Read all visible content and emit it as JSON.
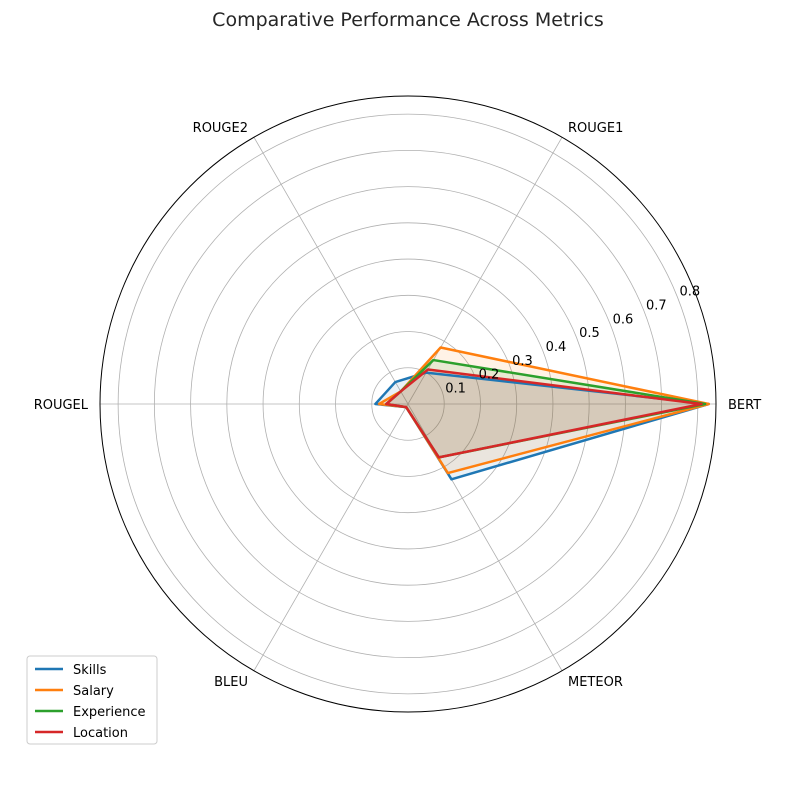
{
  "chart_data": {
    "type": "radar",
    "title": "Comparative Performance Across Metrics",
    "axes": [
      "BERT",
      "ROUGE1",
      "ROUGE2",
      "ROUGEL",
      "BLEU",
      "METEOR"
    ],
    "rlim": [
      0,
      0.85
    ],
    "r_ticks": [
      "0.1",
      "0.2",
      "0.3",
      "0.4",
      "0.5",
      "0.6",
      "0.7",
      "0.8"
    ],
    "grid": true,
    "legend_position": "lower-left",
    "series": [
      {
        "name": "Skills",
        "color": "#1f77b4",
        "values": [
          0.83,
          0.1,
          0.07,
          0.09,
          0.01,
          0.24
        ]
      },
      {
        "name": "Salary",
        "color": "#ff7f0e",
        "values": [
          0.83,
          0.18,
          0.04,
          0.08,
          0.01,
          0.22
        ]
      },
      {
        "name": "Experience",
        "color": "#2ca02c",
        "values": [
          0.82,
          0.14,
          0.04,
          0.06,
          0.01,
          0.17
        ]
      },
      {
        "name": "Location",
        "color": "#d62728",
        "values": [
          0.81,
          0.11,
          0.04,
          0.06,
          0.01,
          0.17
        ]
      }
    ]
  }
}
